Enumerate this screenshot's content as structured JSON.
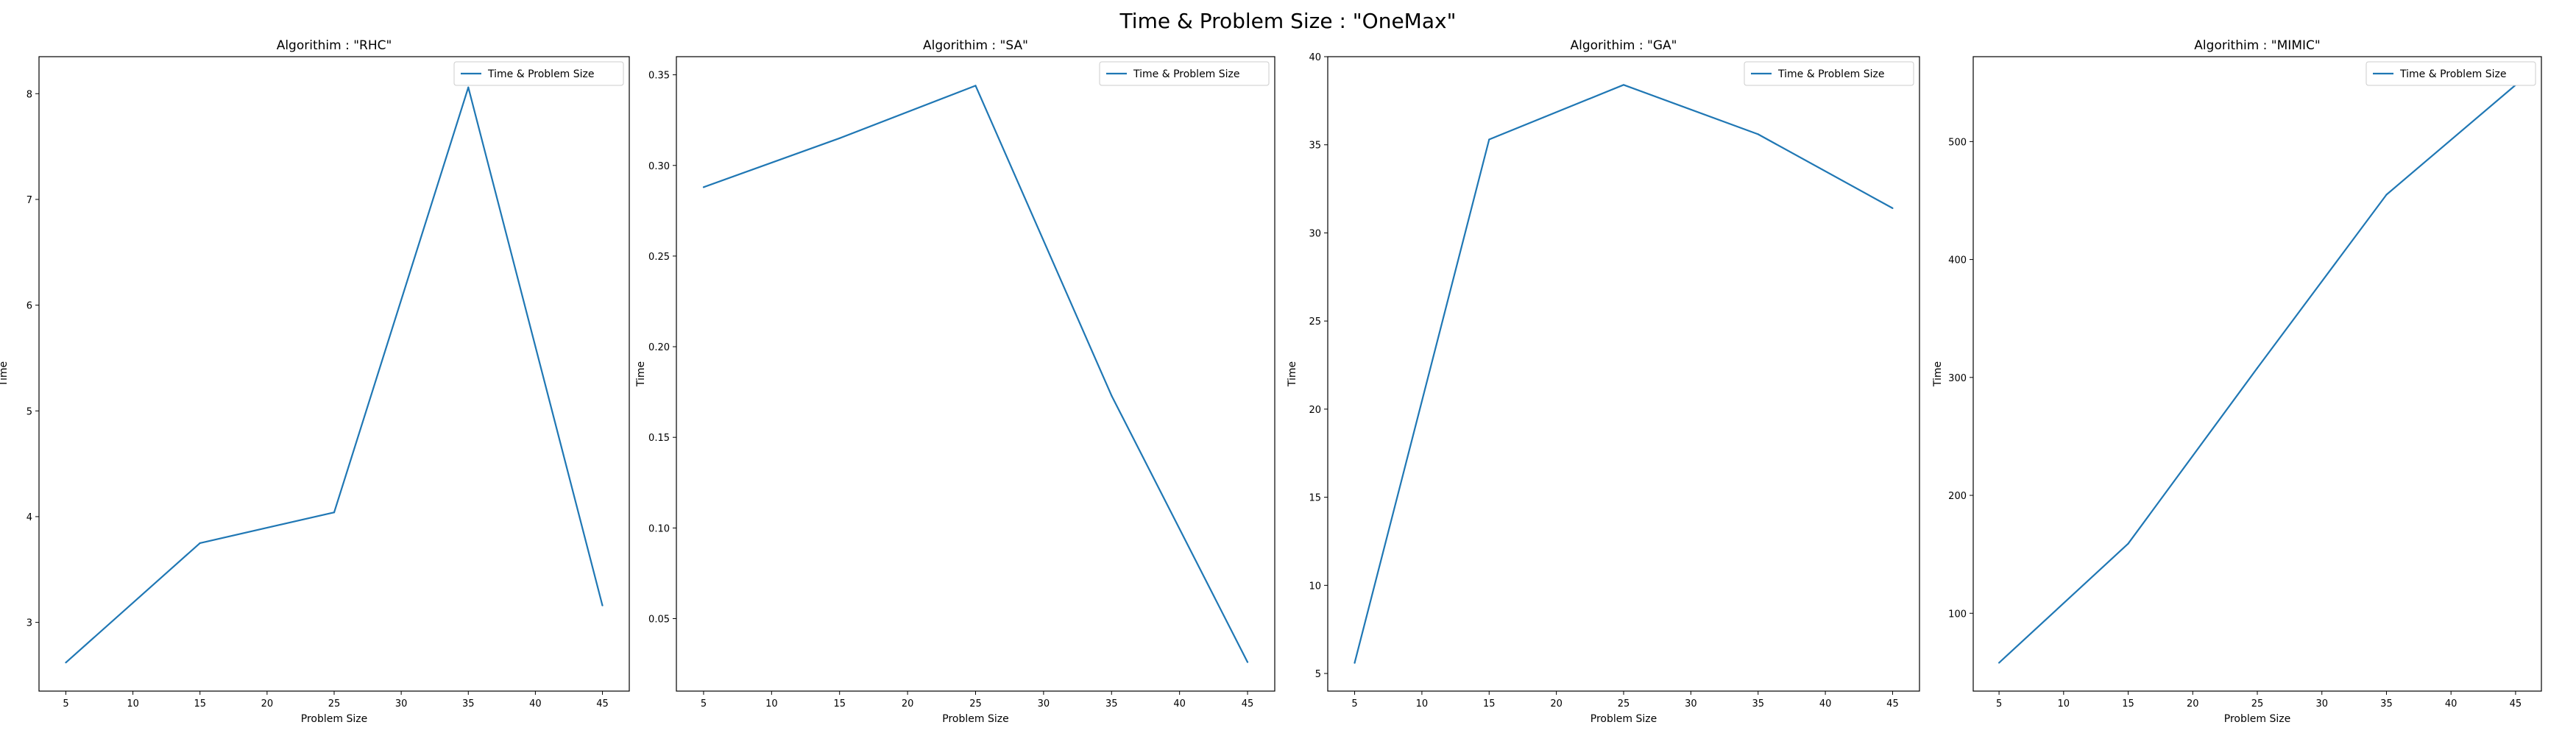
{
  "figure": {
    "suptitle": "Time & Problem Size : \"OneMax\""
  },
  "chart_data": [
    {
      "type": "line",
      "title": "Algorithim : \"RHC\"",
      "xlabel": "Problem Size",
      "ylabel": "Time",
      "x": [
        5,
        15,
        25,
        35,
        45
      ],
      "series": [
        {
          "name": "Time & Problem Size",
          "values": [
            2.62,
            3.75,
            4.04,
            8.06,
            3.16
          ],
          "color": "#1f77b4"
        }
      ],
      "xlim": [
        3,
        47
      ],
      "ylim": [
        2.35,
        8.35
      ],
      "xticks": [
        5,
        10,
        15,
        20,
        25,
        30,
        35,
        40,
        45
      ],
      "yticks": [
        3,
        4,
        5,
        6,
        7,
        8
      ],
      "legend": "upper right",
      "grid": false
    },
    {
      "type": "line",
      "title": "Algorithim : \"SA\"",
      "xlabel": "Problem Size",
      "ylabel": "Time",
      "x": [
        5,
        15,
        25,
        35,
        45
      ],
      "series": [
        {
          "name": "Time & Problem Size",
          "values": [
            0.288,
            0.315,
            0.344,
            0.173,
            0.026
          ],
          "color": "#1f77b4"
        }
      ],
      "xlim": [
        3,
        47
      ],
      "ylim": [
        0.01,
        0.36
      ],
      "xticks": [
        5,
        10,
        15,
        20,
        25,
        30,
        35,
        40,
        45
      ],
      "yticks": [
        0.05,
        0.1,
        0.15,
        0.2,
        0.25,
        0.3,
        0.35
      ],
      "ytick_labels": [
        "0.05",
        "0.10",
        "0.15",
        "0.20",
        "0.25",
        "0.30",
        "0.35"
      ],
      "legend": "upper right",
      "grid": false
    },
    {
      "type": "line",
      "title": "Algorithim : \"GA\"",
      "xlabel": "Problem Size",
      "ylabel": "Time",
      "x": [
        5,
        15,
        25,
        35,
        45
      ],
      "series": [
        {
          "name": "Time & Problem Size",
          "values": [
            5.6,
            35.3,
            38.4,
            35.6,
            31.4
          ],
          "color": "#1f77b4"
        }
      ],
      "xlim": [
        3,
        47
      ],
      "ylim": [
        4.0,
        40.0
      ],
      "xticks": [
        5,
        10,
        15,
        20,
        25,
        30,
        35,
        40,
        45
      ],
      "yticks": [
        5,
        10,
        15,
        20,
        25,
        30,
        35,
        40
      ],
      "legend": "upper right",
      "grid": false
    },
    {
      "type": "line",
      "title": "Algorithim : \"MIMIC\"",
      "xlabel": "Problem Size",
      "ylabel": "Time",
      "x": [
        5,
        15,
        25,
        35,
        45
      ],
      "series": [
        {
          "name": "Time & Problem Size",
          "values": [
            58,
            159,
            308,
            455,
            548
          ],
          "color": "#1f77b4"
        }
      ],
      "xlim": [
        3,
        47
      ],
      "ylim": [
        34,
        572
      ],
      "xticks": [
        5,
        10,
        15,
        20,
        25,
        30,
        35,
        40,
        45
      ],
      "yticks": [
        100,
        200,
        300,
        400,
        500
      ],
      "legend": "upper right",
      "grid": false
    }
  ]
}
